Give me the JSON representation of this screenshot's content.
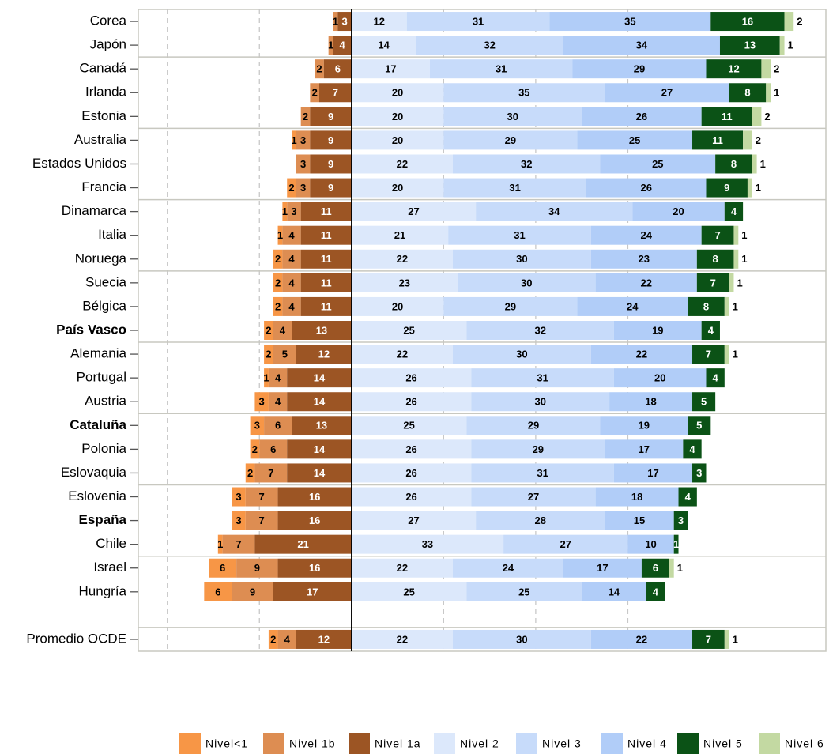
{
  "chart_data": {
    "type": "diverging-bar",
    "categories": [
      "Corea",
      "Japón",
      "Canadá",
      "Irlanda",
      "Estonia",
      "Australia",
      "Estados Unidos",
      "Francia",
      "Dinamarca",
      "Italia",
      "Noruega",
      "Suecia",
      "Bélgica",
      "País Vasco",
      "Alemania",
      "Portugal",
      "Austria",
      "Cataluña",
      "Polonia",
      "Eslovaquia",
      "Eslovenia",
      "España",
      "Chile",
      "Israel",
      "Hungría",
      null,
      "Promedio OCDE"
    ],
    "series": [
      {
        "name": "Nivel<1",
        "color": "#f79646",
        "values": [
          0,
          0,
          0,
          0,
          0,
          1,
          0,
          2,
          1,
          1,
          2,
          2,
          2,
          2,
          2,
          1,
          3,
          3,
          2,
          2,
          3,
          3,
          1,
          6,
          6,
          null,
          2
        ]
      },
      {
        "name": "Nivel 1b",
        "color": "#dd8d52",
        "values": [
          1,
          1,
          2,
          2,
          2,
          3,
          3,
          3,
          3,
          4,
          4,
          4,
          4,
          4,
          5,
          4,
          4,
          6,
          6,
          7,
          7,
          7,
          7,
          9,
          9,
          null,
          4
        ]
      },
      {
        "name": "Nivel 1a",
        "color": "#9c5524",
        "values": [
          3,
          4,
          6,
          7,
          9,
          9,
          9,
          9,
          11,
          11,
          11,
          11,
          11,
          13,
          12,
          14,
          14,
          13,
          14,
          14,
          16,
          16,
          21,
          16,
          17,
          null,
          12
        ]
      },
      {
        "name": "Nivel 2",
        "color": "#dce8fb",
        "values": [
          12,
          14,
          17,
          20,
          20,
          20,
          22,
          20,
          27,
          21,
          22,
          23,
          20,
          25,
          22,
          26,
          26,
          25,
          26,
          26,
          26,
          27,
          33,
          22,
          25,
          null,
          22
        ]
      },
      {
        "name": "Nivel 3",
        "color": "#c7dbfa",
        "values": [
          31,
          32,
          31,
          35,
          30,
          29,
          32,
          31,
          34,
          31,
          30,
          30,
          29,
          32,
          30,
          31,
          30,
          29,
          29,
          31,
          27,
          28,
          27,
          24,
          25,
          null,
          30
        ]
      },
      {
        "name": "Nivel 4",
        "color": "#b1cdf8",
        "values": [
          35,
          34,
          29,
          27,
          26,
          25,
          25,
          26,
          20,
          24,
          23,
          22,
          24,
          19,
          22,
          20,
          18,
          19,
          17,
          17,
          18,
          15,
          10,
          17,
          14,
          null,
          22
        ]
      },
      {
        "name": "Nivel 5",
        "color": "#0b5216",
        "values": [
          16,
          13,
          12,
          8,
          11,
          11,
          8,
          9,
          4,
          7,
          8,
          7,
          8,
          4,
          7,
          4,
          5,
          5,
          4,
          3,
          4,
          3,
          1,
          6,
          4,
          null,
          7
        ]
      },
      {
        "name": "Nivel 6",
        "color": "#c3d9a2",
        "values": [
          2,
          1,
          2,
          1,
          2,
          2,
          1,
          1,
          0,
          1,
          1,
          1,
          1,
          0,
          1,
          0,
          0,
          0,
          0,
          0,
          0,
          0,
          0,
          1,
          0,
          null,
          1
        ]
      }
    ],
    "xlim": [
      -46.3,
      103
    ],
    "xticks": [
      -40,
      -20,
      0,
      20,
      40,
      60
    ],
    "grid": true,
    "legend": "bottom"
  }
}
